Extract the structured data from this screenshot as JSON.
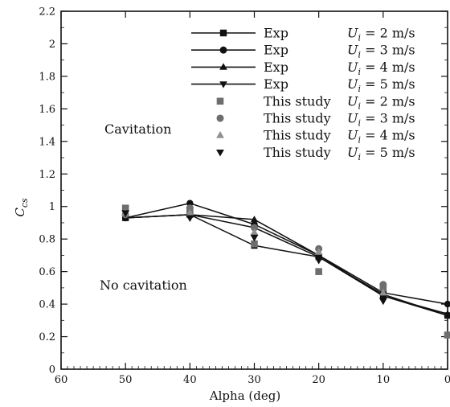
{
  "chart_data": {
    "type": "line",
    "title": "",
    "xlabel": "Alpha (deg)",
    "ylabel": "C_cs",
    "xlim": [
      60,
      0
    ],
    "ylim": [
      0,
      2.2
    ],
    "x_ticks": [
      "60",
      "50",
      "40",
      "30",
      "20",
      "10",
      "0"
    ],
    "y_ticks": [
      "0",
      "0.2",
      "0.4",
      "0.6",
      "0.8",
      "1",
      "1.2",
      "1.4",
      "1.6",
      "1.8",
      "2",
      "2.2"
    ],
    "grid": false,
    "legend_position": "top-right",
    "annotations": [
      "Cavitation",
      "No cavitation"
    ],
    "series": [
      {
        "name": "Exp  U_i = 2 m/s",
        "style": "line",
        "marker": "square",
        "color": "#111111",
        "x": [
          50,
          40,
          30,
          20,
          10,
          0
        ],
        "y": [
          0.93,
          0.95,
          0.76,
          0.69,
          0.46,
          0.33
        ]
      },
      {
        "name": "Exp  U_i = 3 m/s",
        "style": "line",
        "marker": "circle",
        "color": "#111111",
        "x": [
          50,
          40,
          30,
          20,
          10,
          0
        ],
        "y": [
          0.93,
          1.02,
          0.89,
          0.7,
          0.47,
          0.4
        ]
      },
      {
        "name": "Exp  U_i = 4 m/s",
        "style": "line",
        "marker": "triangle-up",
        "color": "#111111",
        "x": [
          50,
          40,
          30,
          20,
          10,
          0
        ],
        "y": [
          0.93,
          0.95,
          0.92,
          0.7,
          0.45,
          0.34
        ]
      },
      {
        "name": "Exp  U_i = 5 m/s",
        "style": "line",
        "marker": "triangle-down",
        "color": "#111111",
        "x": [
          50,
          40,
          30,
          20,
          10,
          0
        ],
        "y": [
          0.93,
          0.95,
          0.87,
          0.69,
          0.45,
          0.33
        ]
      },
      {
        "name": "This study  U_i = 2 m/s",
        "style": "marker",
        "marker": "square",
        "color": "#6e6e6e",
        "x": [
          50,
          40,
          30,
          20,
          10,
          0
        ],
        "y": [
          0.99,
          0.98,
          0.77,
          0.6,
          0.5,
          0.21
        ]
      },
      {
        "name": "This study  U_i = 3 m/s",
        "style": "marker",
        "marker": "circle",
        "color": "#6e6e6e",
        "x": [
          50,
          40,
          30,
          20,
          10
        ],
        "y": [
          0.95,
          0.99,
          0.87,
          0.74,
          0.52
        ]
      },
      {
        "name": "This study  U_i = 4 m/s",
        "style": "marker",
        "marker": "triangle-up",
        "color": "#909090",
        "x": [
          50,
          40,
          30,
          20,
          10
        ],
        "y": [
          0.96,
          0.96,
          0.84,
          0.72,
          0.47
        ]
      },
      {
        "name": "This study  U_i = 5 m/s",
        "style": "marker",
        "marker": "triangle-down",
        "color": "#111111",
        "x": [
          50,
          40,
          30,
          20,
          10
        ],
        "y": [
          0.96,
          0.93,
          0.81,
          0.67,
          0.42
        ]
      }
    ],
    "legend": [
      {
        "label": "Exp",
        "speed": "U_i = 2 m/s"
      },
      {
        "label": "Exp",
        "speed": "U_i = 3 m/s"
      },
      {
        "label": "Exp",
        "speed": "U_i = 4 m/s"
      },
      {
        "label": "Exp",
        "speed": "U_i = 5 m/s"
      },
      {
        "label": "This study",
        "speed": "U_i = 2 m/s"
      },
      {
        "label": "This study",
        "speed": "U_i = 3 m/s"
      },
      {
        "label": "This study",
        "speed": "U_i = 4 m/s"
      },
      {
        "label": "This study",
        "speed": "U_i = 5 m/s"
      }
    ]
  }
}
